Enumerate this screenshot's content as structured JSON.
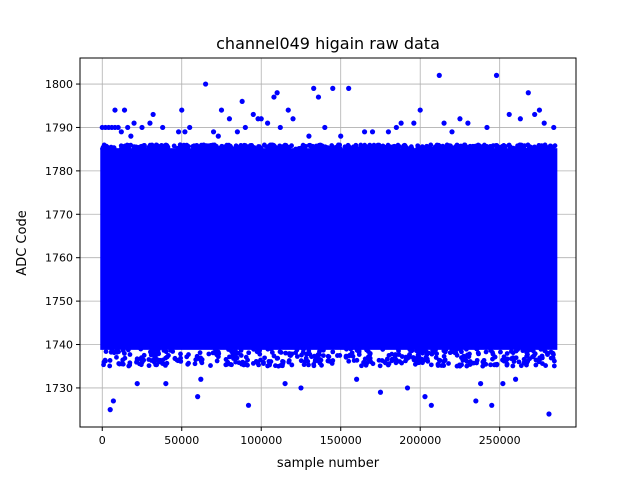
{
  "chart_data": {
    "type": "scatter",
    "title": "channel049 higain raw data",
    "xlabel": "sample number",
    "ylabel": "ADC Code",
    "xlim": [
      -14000,
      298000
    ],
    "ylim": [
      1721,
      1806
    ],
    "grid": true,
    "xticks": [
      0,
      50000,
      100000,
      150000,
      200000,
      250000
    ],
    "xtick_labels": [
      "0",
      "50000",
      "100000",
      "150000",
      "200000",
      "250000"
    ],
    "yticks": [
      1730,
      1740,
      1750,
      1760,
      1770,
      1780,
      1790,
      1800
    ],
    "ytick_labels": [
      "1730",
      "1740",
      "1750",
      "1760",
      "1770",
      "1780",
      "1790",
      "1800"
    ],
    "series_color": "#0000ff",
    "dense_band": {
      "x_range": [
        0,
        285000
      ],
      "y_range": [
        1739,
        1785
      ],
      "outer_y_range": [
        1735,
        1786
      ],
      "n_samples": 285000
    },
    "outliers": [
      [
        0,
        1790
      ],
      [
        2000,
        1790
      ],
      [
        4000,
        1790
      ],
      [
        6000,
        1790
      ],
      [
        8000,
        1790
      ],
      [
        5000,
        1725
      ],
      [
        7000,
        1727
      ],
      [
        8000,
        1794
      ],
      [
        10000,
        1790
      ],
      [
        12000,
        1789
      ],
      [
        14000,
        1794
      ],
      [
        16000,
        1790
      ],
      [
        18000,
        1788
      ],
      [
        20000,
        1791
      ],
      [
        22000,
        1731
      ],
      [
        25000,
        1790
      ],
      [
        30000,
        1791
      ],
      [
        32000,
        1793
      ],
      [
        38000,
        1790
      ],
      [
        40000,
        1731
      ],
      [
        48000,
        1789
      ],
      [
        50000,
        1794
      ],
      [
        52000,
        1789
      ],
      [
        55000,
        1790
      ],
      [
        60000,
        1728
      ],
      [
        62000,
        1732
      ],
      [
        65000,
        1800
      ],
      [
        70000,
        1789
      ],
      [
        73000,
        1788
      ],
      [
        75000,
        1794
      ],
      [
        80000,
        1792
      ],
      [
        85000,
        1789
      ],
      [
        88000,
        1796
      ],
      [
        90000,
        1790
      ],
      [
        92000,
        1726
      ],
      [
        95000,
        1793
      ],
      [
        98000,
        1792
      ],
      [
        100000,
        1792
      ],
      [
        104000,
        1791
      ],
      [
        108000,
        1797
      ],
      [
        110000,
        1798
      ],
      [
        112000,
        1790
      ],
      [
        115000,
        1731
      ],
      [
        117000,
        1794
      ],
      [
        120000,
        1792
      ],
      [
        125000,
        1730
      ],
      [
        130000,
        1788
      ],
      [
        133000,
        1799
      ],
      [
        136000,
        1797
      ],
      [
        140000,
        1790
      ],
      [
        145000,
        1799
      ],
      [
        150000,
        1788
      ],
      [
        155000,
        1799
      ],
      [
        160000,
        1732
      ],
      [
        165000,
        1789
      ],
      [
        170000,
        1789
      ],
      [
        175000,
        1729
      ],
      [
        180000,
        1789
      ],
      [
        185000,
        1790
      ],
      [
        188000,
        1791
      ],
      [
        192000,
        1730
      ],
      [
        196000,
        1791
      ],
      [
        200000,
        1794
      ],
      [
        203000,
        1728
      ],
      [
        207000,
        1726
      ],
      [
        212000,
        1802
      ],
      [
        215000,
        1791
      ],
      [
        220000,
        1789
      ],
      [
        225000,
        1792
      ],
      [
        230000,
        1791
      ],
      [
        235000,
        1727
      ],
      [
        238000,
        1731
      ],
      [
        242000,
        1790
      ],
      [
        245000,
        1726
      ],
      [
        248000,
        1802
      ],
      [
        252000,
        1731
      ],
      [
        256000,
        1793
      ],
      [
        260000,
        1732
      ],
      [
        263000,
        1792
      ],
      [
        268000,
        1798
      ],
      [
        272000,
        1793
      ],
      [
        275000,
        1794
      ],
      [
        278000,
        1791
      ],
      [
        281000,
        1724
      ],
      [
        284000,
        1790
      ]
    ]
  }
}
